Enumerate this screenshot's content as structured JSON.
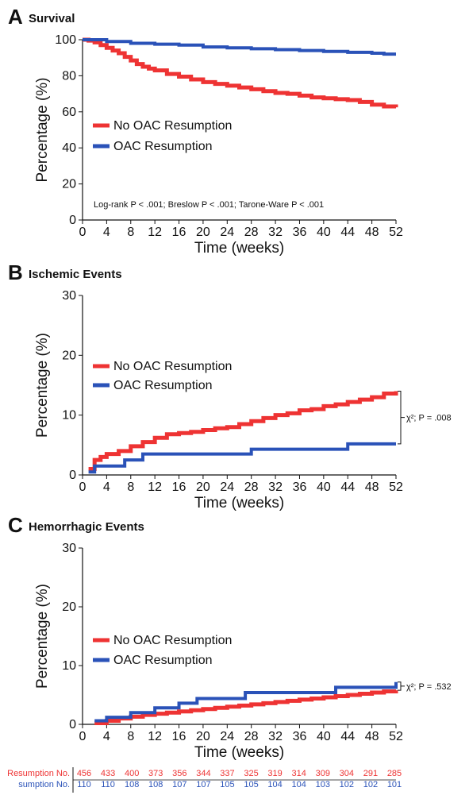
{
  "colors": {
    "no_oac": "#ee3333",
    "oac": "#2a52b8",
    "axis": "#111111"
  },
  "chart_data": [
    {
      "type": "line",
      "panel": "A",
      "title": "Survival",
      "xlabel": "Time (weeks)",
      "ylabel": "Percentage (%)",
      "xlim": [
        0,
        52
      ],
      "ylim": [
        0,
        100
      ],
      "xticks": [
        0,
        4,
        8,
        12,
        16,
        20,
        24,
        28,
        32,
        36,
        40,
        44,
        48,
        52
      ],
      "yticks": [
        0,
        20,
        40,
        60,
        80,
        100
      ],
      "legend": "left-middle",
      "annotation": "Log-rank P < .001; Breslow P < .001; Tarone-Ware P < .001",
      "series": [
        {
          "name": "No OAC Resumption",
          "color": "#ee3333",
          "x": [
            0,
            1,
            2,
            3,
            4,
            5,
            6,
            7,
            8,
            9,
            10,
            11,
            12,
            14,
            16,
            18,
            20,
            22,
            24,
            26,
            28,
            30,
            32,
            34,
            36,
            38,
            40,
            42,
            44,
            46,
            48,
            50,
            52
          ],
          "y": [
            100,
            99.5,
            98.5,
            97,
            95.5,
            94,
            92.5,
            90.5,
            88.5,
            86.5,
            85,
            84,
            83,
            81,
            79.5,
            78,
            76.5,
            75.5,
            74.5,
            73.5,
            72.5,
            71.5,
            70.5,
            70,
            69,
            68,
            67.5,
            67,
            66.5,
            65.5,
            64,
            63,
            62.5
          ]
        },
        {
          "name": "OAC Resumption",
          "color": "#2a52b8",
          "x": [
            0,
            4,
            8,
            12,
            16,
            20,
            24,
            28,
            32,
            36,
            40,
            44,
            48,
            50,
            52
          ],
          "y": [
            100,
            99,
            98,
            97.5,
            97,
            96,
            95.5,
            95,
            94.5,
            94,
            93.5,
            93,
            92.5,
            92,
            92
          ]
        }
      ]
    },
    {
      "type": "line",
      "panel": "B",
      "title": "Ischemic Events",
      "xlabel": "Time (weeks)",
      "ylabel": "Percentage (%)",
      "xlim": [
        0,
        52
      ],
      "ylim": [
        0,
        30
      ],
      "xticks": [
        0,
        4,
        8,
        12,
        16,
        20,
        24,
        28,
        32,
        36,
        40,
        44,
        48,
        52
      ],
      "yticks": [
        0,
        10,
        20,
        30
      ],
      "legend": "left-middle",
      "annotation": "χ²; P = .008",
      "series": [
        {
          "name": "No OAC Resumption",
          "color": "#ee3333",
          "x": [
            1,
            2,
            3,
            4,
            6,
            8,
            10,
            12,
            14,
            16,
            18,
            20,
            22,
            24,
            26,
            28,
            30,
            32,
            34,
            36,
            38,
            40,
            42,
            44,
            46,
            48,
            50,
            52
          ],
          "y": [
            1,
            2.5,
            3,
            3.5,
            4,
            4.8,
            5.5,
            6.2,
            6.8,
            7,
            7.2,
            7.5,
            7.8,
            8,
            8.5,
            9,
            9.5,
            10,
            10.3,
            10.8,
            11,
            11.5,
            11.8,
            12.2,
            12.6,
            13,
            13.6,
            14
          ]
        },
        {
          "name": "OAC Resumption",
          "color": "#2a52b8",
          "x": [
            1,
            2,
            7,
            10,
            28,
            44,
            52
          ],
          "y": [
            0.5,
            1.5,
            2.5,
            3.5,
            4.3,
            5.2,
            5.2
          ]
        }
      ]
    },
    {
      "type": "line",
      "panel": "C",
      "title": "Hemorrhagic Events",
      "xlabel": "Time (weeks)",
      "ylabel": "Percentage (%)",
      "xlim": [
        0,
        52
      ],
      "ylim": [
        0,
        30
      ],
      "xticks": [
        0,
        4,
        8,
        12,
        16,
        20,
        24,
        28,
        32,
        36,
        40,
        44,
        48,
        52
      ],
      "yticks": [
        0,
        10,
        20,
        30
      ],
      "legend": "left-middle",
      "annotation": "χ²; P = .532",
      "series": [
        {
          "name": "No OAC Resumption",
          "color": "#ee3333",
          "x": [
            2,
            4,
            6,
            8,
            10,
            12,
            14,
            16,
            18,
            20,
            22,
            24,
            26,
            28,
            30,
            32,
            34,
            36,
            38,
            40,
            42,
            44,
            46,
            48,
            50,
            52
          ],
          "y": [
            0.2,
            0.6,
            1,
            1.3,
            1.6,
            1.8,
            2,
            2.2,
            2.4,
            2.6,
            2.8,
            3,
            3.2,
            3.4,
            3.6,
            3.8,
            4,
            4.2,
            4.4,
            4.6,
            4.8,
            5,
            5.2,
            5.4,
            5.6,
            5.8
          ]
        },
        {
          "name": "OAC Resumption",
          "color": "#2a52b8",
          "x": [
            2,
            4,
            8,
            12,
            16,
            19,
            27,
            42,
            52
          ],
          "y": [
            0.6,
            1.2,
            2,
            2.8,
            3.6,
            4.4,
            5.4,
            6.3,
            7.2
          ]
        }
      ]
    }
  ],
  "risk_table": {
    "rows": [
      {
        "label": "Resumption No.",
        "color": "#ee3333",
        "values": [
          "456",
          "433",
          "400",
          "373",
          "356",
          "344",
          "337",
          "325",
          "319",
          "314",
          "309",
          "304",
          "291",
          "285"
        ]
      },
      {
        "label": "sumption No.",
        "color": "#2a52b8",
        "values": [
          "110",
          "110",
          "108",
          "108",
          "107",
          "107",
          "105",
          "105",
          "104",
          "104",
          "103",
          "102",
          "102",
          "101"
        ]
      }
    ]
  }
}
